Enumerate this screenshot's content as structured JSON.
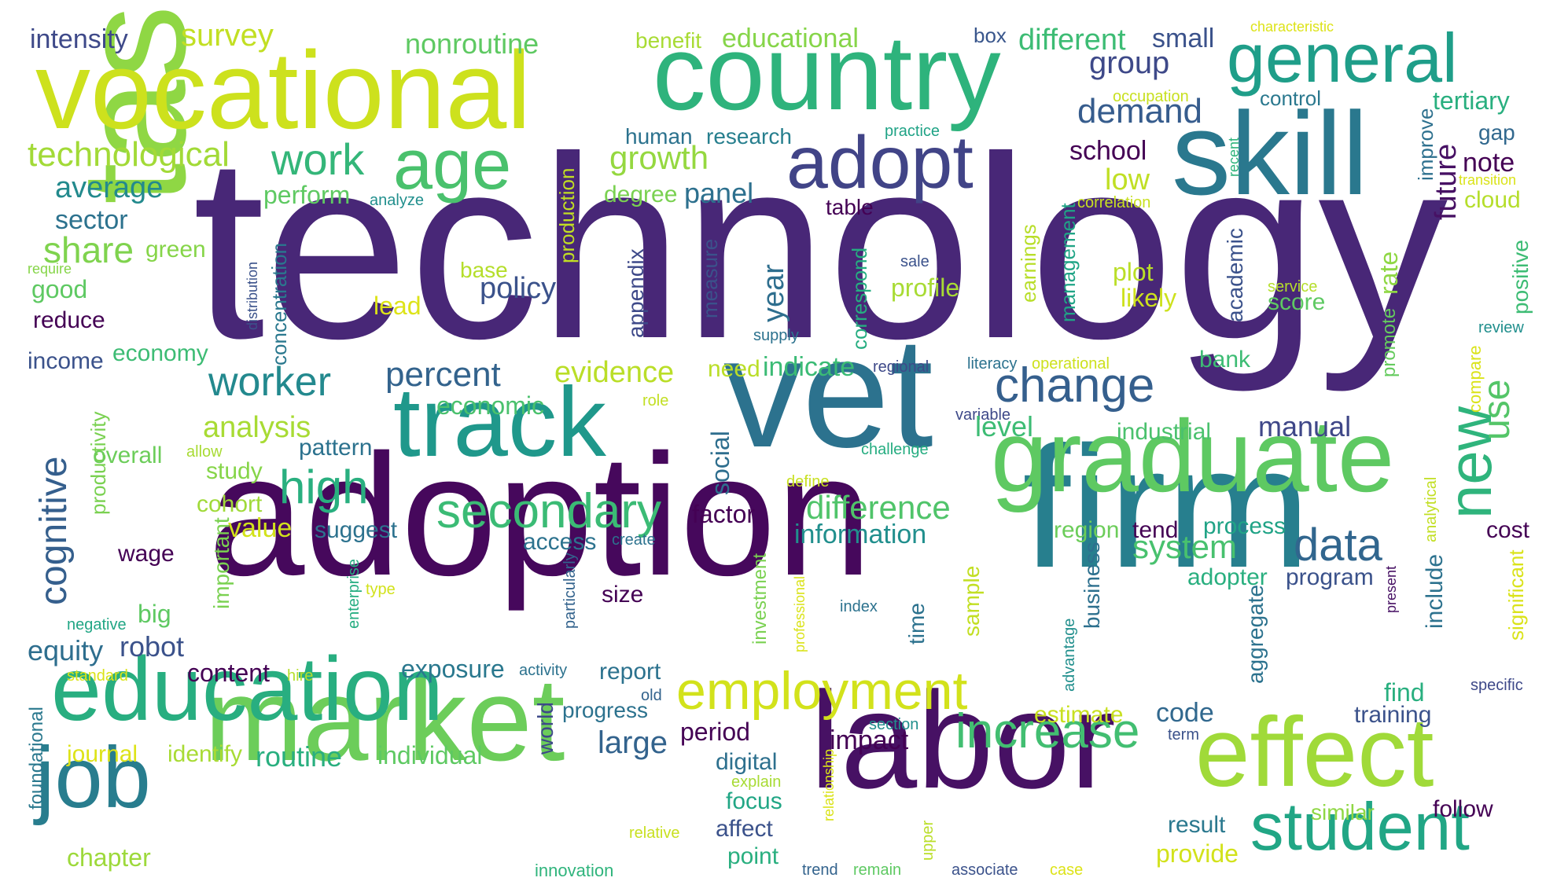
{
  "words": [
    {
      "text": "technology",
      "color": "#482777",
      "r": 0
    },
    {
      "text": "adoption",
      "color": "#46085c",
      "r": 0
    },
    {
      "text": "task",
      "color": "#8fd744",
      "r": -90
    },
    {
      "text": "firm",
      "color": "#277f8e",
      "r": 0
    },
    {
      "text": "vet",
      "color": "#2c728e",
      "r": 0
    },
    {
      "text": "market",
      "color": "#6ccd5a",
      "r": 0
    },
    {
      "text": "labor",
      "color": "#471164",
      "r": 0
    },
    {
      "text": "country",
      "color": "#2eb37c",
      "r": 0
    },
    {
      "text": "graduate",
      "color": "#5ec962",
      "r": 0
    },
    {
      "text": "vocational",
      "color": "#cde11d",
      "r": 0
    },
    {
      "text": "skill",
      "color": "#2a788e",
      "r": 0
    },
    {
      "text": "effect",
      "color": "#a0da39",
      "r": 0
    },
    {
      "text": "education",
      "color": "#28ae80",
      "r": 0
    },
    {
      "text": "track",
      "color": "#1f988b",
      "r": 0
    },
    {
      "text": "job",
      "color": "#287d8e",
      "r": 0
    },
    {
      "text": "student",
      "color": "#21a685",
      "r": 0
    },
    {
      "text": "general",
      "color": "#1f9e89",
      "r": 0
    },
    {
      "text": "age",
      "color": "#4ac16d",
      "r": 0
    },
    {
      "text": "adopt",
      "color": "#414487",
      "r": 0
    },
    {
      "text": "new",
      "color": "#2fb47c",
      "r": -90
    },
    {
      "text": "employment",
      "color": "#d2e21b",
      "r": 0
    },
    {
      "text": "increase",
      "color": "#42be71",
      "r": 0
    },
    {
      "text": "secondary",
      "color": "#3bbb75",
      "r": 0
    },
    {
      "text": "change",
      "color": "#355f8d",
      "r": 0
    },
    {
      "text": "data",
      "color": "#31668e",
      "r": 0
    },
    {
      "text": "high",
      "color": "#29af7f",
      "r": 0
    },
    {
      "text": "work",
      "color": "#34b679",
      "r": 0
    },
    {
      "text": "worker",
      "color": "#23898e",
      "r": 0
    },
    {
      "text": "technological",
      "color": "#a2da37",
      "r": 0
    },
    {
      "text": "cognitive",
      "color": "#355f8d",
      "r": -90
    },
    {
      "text": "demand",
      "color": "#365c8d",
      "r": 0
    },
    {
      "text": "percent",
      "color": "#33638d",
      "r": 0
    },
    {
      "text": "group",
      "color": "#3e4989",
      "r": 0
    },
    {
      "text": "difference",
      "color": "#50c46a",
      "r": 0
    },
    {
      "text": "share",
      "color": "#7fd34e",
      "r": 0
    },
    {
      "text": "growth",
      "color": "#95d840",
      "r": 0
    },
    {
      "text": "system",
      "color": "#48c16e",
      "r": 0
    },
    {
      "text": "average",
      "color": "#238a8d",
      "r": 0
    },
    {
      "text": "analysis",
      "color": "#a8db34",
      "r": 0
    },
    {
      "text": "use",
      "color": "#54c568",
      "r": -90
    },
    {
      "text": "evidence",
      "color": "#bade28",
      "r": 0
    },
    {
      "text": "manual",
      "color": "#3f4788",
      "r": 0
    },
    {
      "text": "chapter",
      "color": "#9dd93b",
      "r": 0
    },
    {
      "text": "market2",
      "color": "#6ccd5a",
      "r": 0
    }
  ],
  "small_words": [
    "intensity",
    "survey",
    "nonroutine",
    "benefit",
    "educational",
    "box",
    "different",
    "small",
    "characteristic",
    "tertiary",
    "control",
    "occupation",
    "practice",
    "human",
    "research",
    "gap",
    "note",
    "school",
    "low",
    "improve",
    "transition",
    "cloud",
    "future",
    "recent",
    "correlation",
    "sector",
    "analyze",
    "perform",
    "degree",
    "panel",
    "table",
    "management",
    "earnings",
    "correspond",
    "measure",
    "appendix",
    "production",
    "concentration",
    "distribution",
    "green",
    "require",
    "good",
    "base",
    "policy",
    "plot",
    "likely",
    "academic",
    "service",
    "score",
    "rate",
    "positive",
    "lead",
    "sale",
    "profile",
    "year",
    "supply",
    "reduce",
    "income",
    "economy",
    "review",
    "compare",
    "promote",
    "productivity",
    "regional",
    "literacy",
    "operational",
    "bank",
    "indicate",
    "need",
    "economic",
    "role",
    "variable",
    "industrial",
    "level",
    "overall",
    "allow",
    "study",
    "pattern",
    "social",
    "challenge",
    "define",
    "cohort",
    "value",
    "suggest",
    "factor",
    "information",
    "region",
    "tend",
    "process",
    "analytical",
    "cost",
    "wage",
    "access",
    "create",
    "type",
    "enterprise",
    "particularly",
    "size",
    "index",
    "investment",
    "professional",
    "sample",
    "business",
    "adopter",
    "program",
    "include",
    "present",
    "significant",
    "negative",
    "big",
    "robot",
    "equity",
    "important",
    "content",
    "hire",
    "exposure",
    "activity",
    "report",
    "old",
    "time",
    "advantage",
    "aggregate",
    "specific",
    "find",
    "standard",
    "foundational",
    "world",
    "progress",
    "code",
    "estimate",
    "training",
    "journal",
    "identify",
    "routine",
    "individual",
    "large",
    "period",
    "digital",
    "impact",
    "relationship",
    "section",
    "term",
    "explain",
    "focus",
    "affect",
    "point",
    "relative",
    "upper",
    "result",
    "similar",
    "follow",
    "provide",
    "innovation",
    "trend",
    "remain",
    "associate",
    "case"
  ]
}
